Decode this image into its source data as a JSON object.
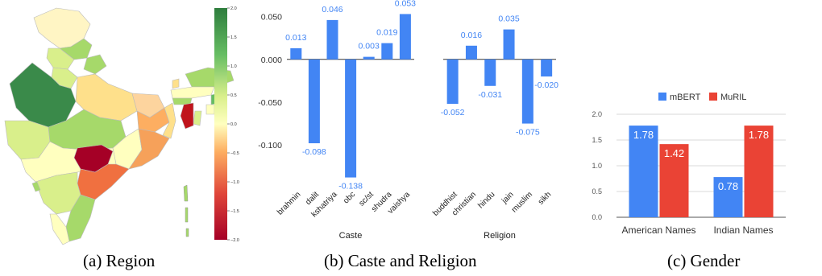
{
  "captions": {
    "a": "(a) Region",
    "b": "(b) Caste and Religion",
    "c": "(c) Gender"
  },
  "colors": {
    "blue": "#4285F4",
    "red": "#EA4335",
    "colormap": [
      "#a50026",
      "#d73027",
      "#f46d43",
      "#fdae61",
      "#fee08b",
      "#ffffbf",
      "#d9ef8b",
      "#a6d96a",
      "#66bd63",
      "#1a9850",
      "#006837"
    ]
  },
  "chart_data": [
    {
      "id": "region",
      "type": "heatmap",
      "description_kind": "choropleth",
      "colorbar": {
        "ticks": [
          "2.0",
          "1.5",
          "1.0",
          "0.5",
          "0.0",
          "−0.5",
          "−1.0",
          "−1.5",
          "−2.0"
        ],
        "range": [
          -2.0,
          2.0
        ]
      }
    },
    {
      "id": "caste",
      "type": "bar",
      "xlabel": "Caste",
      "categories": [
        "brahmin",
        "dalit",
        "kshatriya",
        "obc",
        "sc/st",
        "shudra",
        "vaishya"
      ],
      "values": [
        0.013,
        -0.098,
        0.046,
        -0.138,
        0.003,
        0.019,
        0.053
      ],
      "value_labels": [
        "0.013",
        "-0.098",
        "0.046",
        "-0.138",
        "0.003",
        "0.019",
        "0.053"
      ],
      "yticks": [
        "0.050",
        "0.000",
        "-0.050",
        "-0.100"
      ],
      "ytick_values": [
        0.05,
        0.0,
        -0.05,
        -0.1
      ],
      "ylim": [
        -0.145,
        0.06
      ]
    },
    {
      "id": "religion",
      "type": "bar",
      "xlabel": "Religion",
      "categories": [
        "buddhist",
        "christian",
        "hindu",
        "jain",
        "muslim",
        "sikh"
      ],
      "values": [
        -0.052,
        0.016,
        -0.031,
        0.035,
        -0.075,
        -0.02
      ],
      "value_labels": [
        "-0.052",
        "0.016",
        "-0.031",
        "0.035",
        "-0.075",
        "-0.020"
      ],
      "ylim": [
        -0.145,
        0.06
      ]
    },
    {
      "id": "gender",
      "type": "bar",
      "categories": [
        "American Names",
        "Indian Names"
      ],
      "series": [
        {
          "name": "mBERT",
          "values": [
            1.78,
            0.78
          ],
          "labels": [
            "1.78",
            "0.78"
          ]
        },
        {
          "name": "MuRIL",
          "values": [
            1.42,
            1.78
          ],
          "labels": [
            "1.42",
            "1.78"
          ]
        }
      ],
      "yticks": [
        "2.0",
        "1.5",
        "1.0",
        "0.5",
        "0.0"
      ],
      "ytick_values": [
        2.0,
        1.5,
        1.0,
        0.5,
        0.0
      ],
      "ylim": [
        0,
        2.0
      ],
      "legend": "top"
    }
  ]
}
